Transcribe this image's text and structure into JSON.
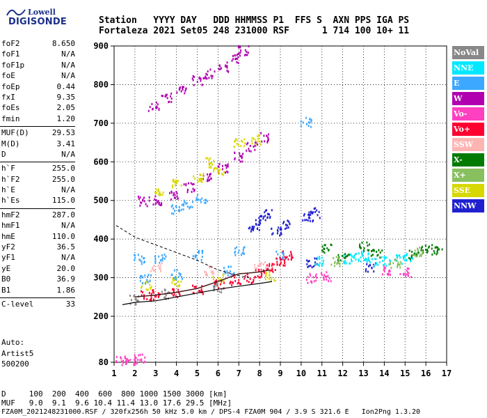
{
  "logo": {
    "brand": "Lowell",
    "product": "DIGISONDE"
  },
  "header": {
    "line1": "Station   YYYY DAY   DDD HHMMSS P1  FFS S  AXN PPS IGA PS",
    "line2": "Fortaleza 2021 Set05 248 231000 RSF      1 714 100 10+ 11"
  },
  "params": [
    {
      "k": "foF2",
      "v": "8.650"
    },
    {
      "k": "foF1",
      "v": "N/A"
    },
    {
      "k": "foF1p",
      "v": "N/A"
    },
    {
      "k": "foE",
      "v": "N/A"
    },
    {
      "k": "foEp",
      "v": "0.44"
    },
    {
      "k": "fxI",
      "v": "9.35"
    },
    {
      "k": "foEs",
      "v": "2.05"
    },
    {
      "k": "fmin",
      "v": "1.20"
    },
    {
      "k": "MUF(D)",
      "v": "29.53"
    },
    {
      "k": "M(D)",
      "v": "3.41"
    },
    {
      "k": "D",
      "v": "N/A"
    },
    {
      "k": "h`F",
      "v": "255.0"
    },
    {
      "k": "h`F2",
      "v": "255.0"
    },
    {
      "k": "h`E",
      "v": "N/A"
    },
    {
      "k": "h`Es",
      "v": "115.0"
    },
    {
      "k": "hmF2",
      "v": "287.0"
    },
    {
      "k": "hmF1",
      "v": "N/A"
    },
    {
      "k": "hmE",
      "v": "110.0"
    },
    {
      "k": "yF2",
      "v": "36.5"
    },
    {
      "k": "yF1",
      "v": "N/A"
    },
    {
      "k": "yE",
      "v": "20.0"
    },
    {
      "k": "B0",
      "v": "36.9"
    },
    {
      "k": "B1",
      "v": "1.86"
    },
    {
      "k": "C-level",
      "v": "33"
    }
  ],
  "auto": {
    "l1": "Auto:",
    "l2": "Artist5",
    "l3": "500200"
  },
  "footer": {
    "line1": "D     100  200  400  600  800 1000 1500 3000 [km]",
    "line2": "MUF   9.0  9.1  9.6 10.4 11.4 13.0 17.6 29.5 [MHz]",
    "line3": "FZA0M_2021248231000.RSF / 320fx256h 50 kHz 5.0 km / DPS-4 FZA0M 904 / 3.9 S 321.6 E   Ion2Png 1.3.20"
  },
  "legend": [
    {
      "label": "NoVal",
      "color": "#888888"
    },
    {
      "label": "NNE",
      "color": "#00e8ff"
    },
    {
      "label": "E",
      "color": "#3ca8ff"
    },
    {
      "label": "W",
      "color": "#b000b0"
    },
    {
      "label": "Vo-",
      "color": "#ff40c0"
    },
    {
      "label": "Vo+",
      "color": "#ff0030"
    },
    {
      "label": "SSW",
      "color": "#ffb4b4"
    },
    {
      "label": "X-",
      "color": "#007a00"
    },
    {
      "label": "X+",
      "color": "#88c060"
    },
    {
      "label": "SSE",
      "color": "#d8d800"
    },
    {
      "label": "NNW",
      "color": "#2020d0"
    }
  ],
  "chart_data": {
    "type": "scatter",
    "xlabel": "",
    "ylabel": "",
    "xlim": [
      1,
      17
    ],
    "ylim": [
      80,
      900
    ],
    "x_ticks": [
      "1",
      "2",
      "3",
      "4",
      "5",
      "6",
      "7",
      "8",
      "9",
      "10",
      "11",
      "12",
      "13",
      "14",
      "15",
      "16",
      "17"
    ],
    "y_ticks": [
      "80",
      "200",
      "300",
      "400",
      "500",
      "600",
      "700",
      "800",
      "900"
    ],
    "grid": true,
    "series": [
      {
        "name": "W",
        "color": "#b000b0",
        "points": [
          [
            2.9,
            745
          ],
          [
            3.5,
            768
          ],
          [
            4.2,
            790
          ],
          [
            5.0,
            812
          ],
          [
            5.6,
            830
          ],
          [
            6.2,
            848
          ],
          [
            6.8,
            870
          ],
          [
            7.2,
            890
          ],
          [
            2.4,
            500
          ],
          [
            3.0,
            503
          ],
          [
            3.8,
            515
          ],
          [
            4.6,
            535
          ],
          [
            5.4,
            560
          ],
          [
            6.2,
            585
          ],
          [
            7.0,
            615
          ],
          [
            7.6,
            640
          ],
          [
            8.2,
            665
          ]
        ]
      },
      {
        "name": "SSE",
        "color": "#d8d800",
        "points": [
          [
            3.1,
            525
          ],
          [
            4.0,
            545
          ],
          [
            5.0,
            560
          ],
          [
            5.5,
            600
          ],
          [
            6.0,
            580
          ],
          [
            7.0,
            650
          ],
          [
            7.8,
            660
          ],
          [
            2.5,
            280
          ],
          [
            4.0,
            290
          ],
          [
            6.0,
            300
          ],
          [
            8.5,
            305
          ]
        ]
      },
      {
        "name": "E",
        "color": "#3ca8ff",
        "points": [
          [
            4.0,
            480
          ],
          [
            4.5,
            490
          ],
          [
            5.2,
            505
          ],
          [
            2.2,
            350
          ],
          [
            3.2,
            350
          ],
          [
            5.0,
            360
          ],
          [
            7.0,
            370
          ],
          [
            9.0,
            360
          ],
          [
            2.5,
            300
          ],
          [
            4.0,
            310
          ],
          [
            6.5,
            320
          ],
          [
            10.2,
            705
          ]
        ]
      },
      {
        "name": "NNW",
        "color": "#2020d0",
        "points": [
          [
            7.7,
            430
          ],
          [
            8.0,
            450
          ],
          [
            8.3,
            470
          ],
          [
            8.8,
            420
          ],
          [
            9.2,
            440
          ],
          [
            10.3,
            460
          ],
          [
            10.6,
            470
          ],
          [
            10.5,
            340
          ],
          [
            13.3,
            330
          ]
        ]
      },
      {
        "name": "Vo+",
        "color": "#ff0030",
        "points": [
          [
            2.5,
            255
          ],
          [
            3.0,
            258
          ],
          [
            4.0,
            263
          ],
          [
            5.0,
            272
          ],
          [
            6.0,
            285
          ],
          [
            6.8,
            295
          ],
          [
            7.5,
            300
          ],
          [
            8.0,
            315
          ],
          [
            8.5,
            330
          ],
          [
            9.0,
            345
          ],
          [
            9.3,
            360
          ]
        ]
      },
      {
        "name": "Vo-",
        "color": "#ff40c0",
        "points": [
          [
            1.3,
            85
          ],
          [
            1.8,
            88
          ],
          [
            2.2,
            92
          ],
          [
            10.5,
            300
          ],
          [
            11.2,
            305
          ],
          [
            14.0,
            320
          ],
          [
            15.0,
            315
          ]
        ]
      },
      {
        "name": "NNE",
        "color": "#00e8ff",
        "points": [
          [
            12.2,
            350
          ],
          [
            12.6,
            355
          ],
          [
            13.0,
            360
          ],
          [
            13.4,
            340
          ],
          [
            14.0,
            345
          ],
          [
            14.8,
            350
          ],
          [
            15.2,
            355
          ],
          [
            10.8,
            345
          ]
        ]
      },
      {
        "name": "X-",
        "color": "#007a00",
        "points": [
          [
            13.0,
            385
          ],
          [
            13.6,
            365
          ],
          [
            15.4,
            360
          ],
          [
            16.0,
            375
          ],
          [
            16.5,
            375
          ],
          [
            12.0,
            355
          ],
          [
            11.2,
            380
          ]
        ]
      },
      {
        "name": "X+",
        "color": "#88c060",
        "points": [
          [
            11.6,
            345
          ],
          [
            14.5,
            340
          ],
          [
            15.6,
            370
          ]
        ]
      },
      {
        "name": "SSW",
        "color": "#ffb4b4",
        "points": [
          [
            3.0,
            330
          ],
          [
            5.5,
            320
          ],
          [
            8.0,
            330
          ]
        ]
      },
      {
        "name": "NoVal",
        "color": "#888888",
        "points": [
          [
            2.0,
            245
          ],
          [
            3.5,
            260
          ],
          [
            6.0,
            275
          ]
        ]
      }
    ],
    "profile_dashed": [
      [
        1.1,
        435
      ],
      [
        2.0,
        405
      ],
      [
        3.0,
        385
      ],
      [
        4.0,
        365
      ],
      [
        5.0,
        345
      ],
      [
        6.0,
        320
      ],
      [
        7.0,
        305
      ],
      [
        7.5,
        300
      ]
    ],
    "profile_solid": [
      [
        1.4,
        230
      ],
      [
        2.0,
        236
      ],
      [
        3.0,
        240
      ],
      [
        4.0,
        250
      ],
      [
        5.0,
        260
      ],
      [
        6.0,
        270
      ],
      [
        7.0,
        278
      ],
      [
        8.0,
        285
      ],
      [
        8.6,
        290
      ]
    ],
    "trace_dark": [
      [
        2.0,
        250
      ],
      [
        3.0,
        255
      ],
      [
        4.0,
        262
      ],
      [
        5.0,
        272
      ],
      [
        6.0,
        290
      ],
      [
        7.0,
        310
      ],
      [
        7.5,
        312
      ],
      [
        8.0,
        315
      ],
      [
        8.5,
        320
      ]
    ]
  }
}
